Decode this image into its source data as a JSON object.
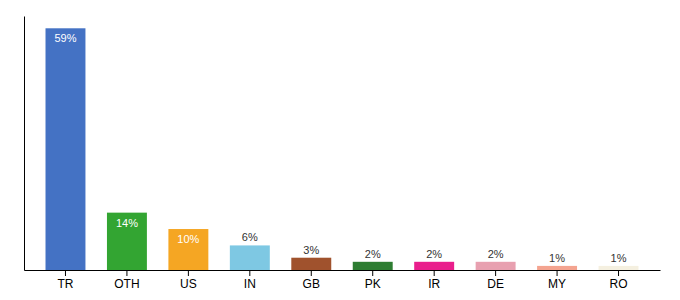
{
  "chart_data": {
    "type": "bar",
    "categories": [
      "TR",
      "OTH",
      "US",
      "IN",
      "GB",
      "PK",
      "IR",
      "DE",
      "MY",
      "RO"
    ],
    "values": [
      59,
      14,
      10,
      6,
      3,
      2,
      2,
      2,
      1,
      1
    ],
    "value_labels": [
      "59%",
      "14%",
      "10%",
      "6%",
      "3%",
      "2%",
      "2%",
      "2%",
      "1%",
      "1%"
    ],
    "colors": [
      "#4472c4",
      "#33a532",
      "#f5a623",
      "#7ec8e3",
      "#a0522d",
      "#2e7d32",
      "#e91e8c",
      "#e8a0b0",
      "#f4a490",
      "#f5f0e0"
    ],
    "ylim": [
      0,
      62
    ],
    "data_labels": true,
    "tick_labels": "x"
  }
}
